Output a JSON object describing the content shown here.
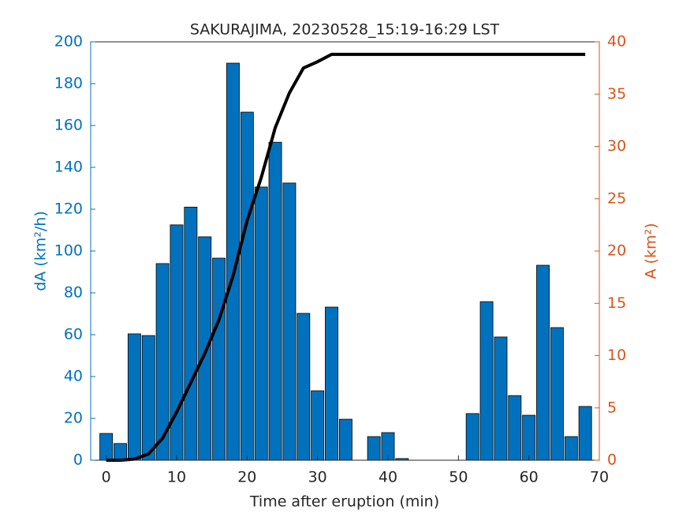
{
  "chart_data": {
    "type": "bar",
    "title": "SAKURAJIMA, 20230528_15:19-16:29 LST",
    "xlabel": "Time after eruption (min)",
    "ylabel": "dA (km²/h)",
    "y2label": "A (km²)",
    "x": [
      0,
      2,
      4,
      6,
      8,
      10,
      12,
      14,
      16,
      18,
      20,
      22,
      24,
      26,
      28,
      30,
      32,
      34,
      36,
      38,
      40,
      42,
      44,
      46,
      48,
      50,
      52,
      54,
      56,
      58,
      60,
      62,
      64,
      66,
      68
    ],
    "series": [
      {
        "type": "bar",
        "color": "#0072BD",
        "values": [
          12.8,
          8,
          60.4,
          59.6,
          94,
          112.5,
          121,
          106.8,
          96.6,
          189.8,
          166.4,
          130.6,
          152,
          132.5,
          70.2,
          33.2,
          73.2,
          19.6,
          0,
          11.3,
          13.2,
          0.8,
          0,
          0,
          0,
          0,
          22.3,
          75.8,
          58.9,
          30.9,
          21.5,
          93.2,
          63.4,
          11.3,
          25.7
        ]
      },
      {
        "type": "line",
        "axis": "y2",
        "color": "#000000",
        "values": [
          0,
          0,
          0.1,
          0.6,
          2.1,
          4.6,
          7.4,
          10.2,
          13.4,
          17.6,
          22.9,
          27,
          31.8,
          35.1,
          37.5,
          38.1,
          38.8,
          38.8,
          38.8,
          38.8,
          38.8,
          38.8,
          38.8,
          38.8,
          38.8,
          38.8,
          38.8,
          38.8,
          38.8,
          38.8,
          38.8,
          38.8,
          38.8,
          38.8,
          38.8
        ]
      }
    ],
    "xlim": [
      -2.2,
      70
    ],
    "xticks": [
      0,
      10,
      20,
      30,
      40,
      50,
      60,
      70
    ],
    "ylim": [
      0,
      200
    ],
    "yticks": [
      0,
      20,
      40,
      60,
      80,
      100,
      120,
      140,
      160,
      180,
      200
    ],
    "ycolor": "#0072BD",
    "y2lim": [
      0,
      40
    ],
    "y2ticks": [
      0,
      5,
      10,
      15,
      20,
      25,
      30,
      35,
      40
    ],
    "y2color": "#D95319"
  }
}
